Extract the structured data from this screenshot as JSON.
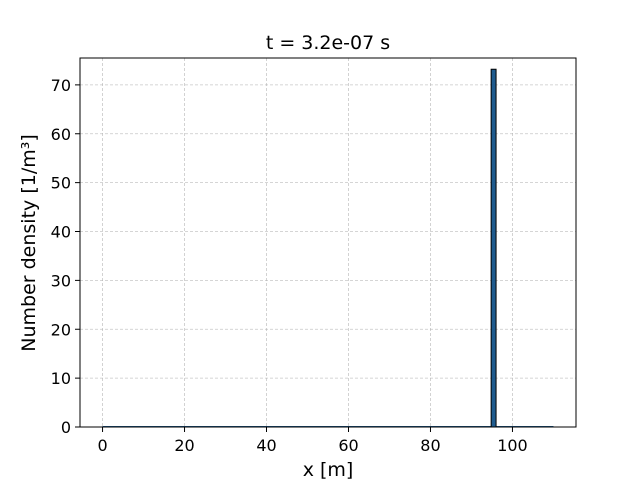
{
  "chart_data": {
    "type": "bar",
    "title": "t = 3.2e-07 s",
    "xlabel": "x [m]",
    "ylabel": "Number density [1/m³]",
    "xlim": [
      -5.5,
      115.5
    ],
    "ylim": [
      0,
      75.5
    ],
    "xticks": [
      0,
      20,
      40,
      60,
      80,
      100
    ],
    "yticks": [
      0,
      10,
      20,
      30,
      40,
      50,
      60,
      70
    ],
    "grid": true,
    "baseline_x_range": [
      0,
      110
    ],
    "bars": [
      {
        "x_start": 94.8,
        "x_end": 96.0,
        "value": 73.2
      }
    ],
    "colors": {
      "bar_fill": "#1f5b8e",
      "bar_edge": "#000000",
      "baseline": "#1f5b8e"
    }
  }
}
